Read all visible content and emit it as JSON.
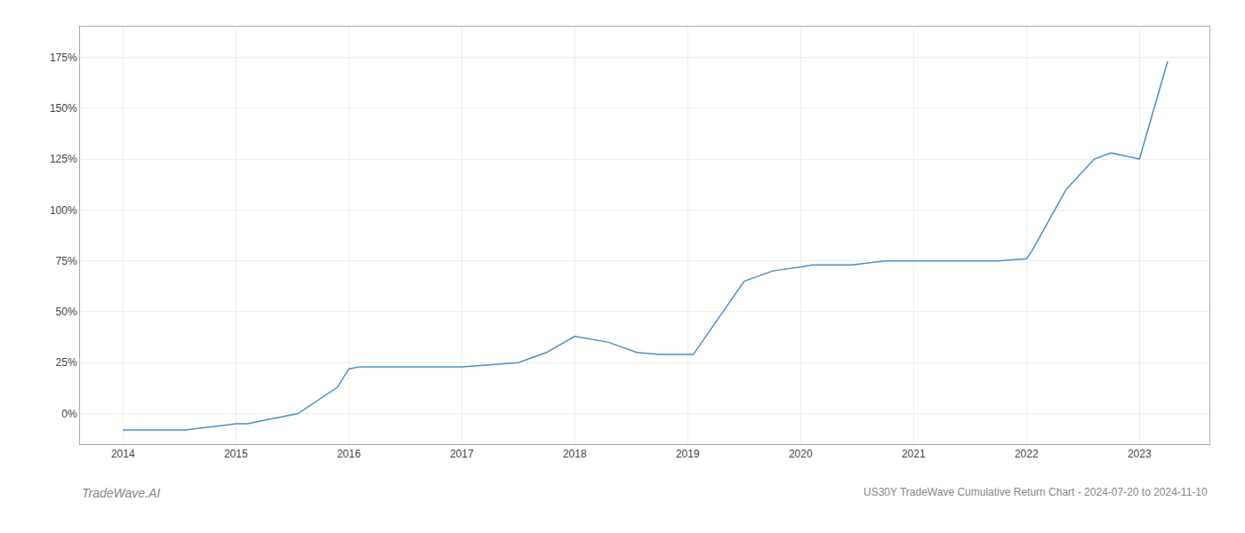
{
  "chart_data": {
    "type": "line",
    "x": [
      2014.0,
      2014.55,
      2015.0,
      2015.1,
      2015.55,
      2015.9,
      2016.0,
      2016.1,
      2016.7,
      2017.0,
      2017.5,
      2017.75,
      2018.0,
      2018.3,
      2018.55,
      2018.75,
      2019.0,
      2019.05,
      2019.5,
      2019.75,
      2020.0,
      2020.1,
      2020.45,
      2020.75,
      2021.0,
      2021.45,
      2021.75,
      2022.0,
      2022.05,
      2022.35,
      2022.6,
      2022.75,
      2023.0,
      2023.25
    ],
    "values": [
      -8,
      -8,
      -5,
      -5,
      0,
      13,
      22,
      23,
      23,
      23,
      25,
      30,
      38,
      35,
      30,
      29,
      29,
      29,
      65,
      70,
      72,
      73,
      73,
      75,
      75,
      75,
      75,
      76,
      80,
      110,
      125,
      128,
      125,
      173
    ],
    "color": "#4a90c4",
    "xlim": [
      2013.62,
      2023.62
    ],
    "xticks": [
      2014,
      2015,
      2016,
      2017,
      2018,
      2019,
      2020,
      2021,
      2022,
      2023
    ],
    "ylim": [
      -15,
      190
    ],
    "yticks": [
      {
        "value": 0,
        "label": "0%"
      },
      {
        "value": 25,
        "label": "25%"
      },
      {
        "value": 50,
        "label": "50%"
      },
      {
        "value": 75,
        "label": "75%"
      },
      {
        "value": 100,
        "label": "100%"
      },
      {
        "value": 125,
        "label": "125%"
      },
      {
        "value": 150,
        "label": "150%"
      },
      {
        "value": 175,
        "label": "175%"
      }
    ],
    "grid": true,
    "annotations": [
      "TradeWave.AI",
      "US30Y TradeWave Cumulative Return Chart - 2024-07-20 to 2024-11-10"
    ]
  }
}
